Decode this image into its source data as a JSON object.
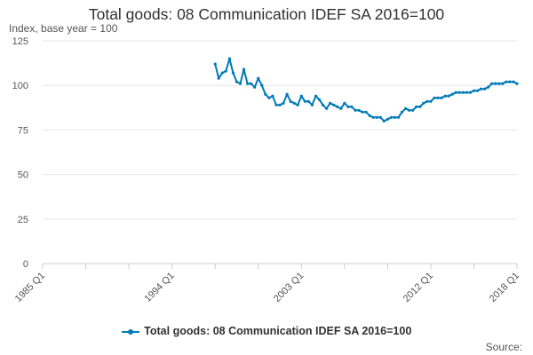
{
  "chart_data": {
    "type": "line",
    "title": "Total goods: 08 Communication IDEF SA 2016=100",
    "ylabel": "Index, base year = 100",
    "ylim": [
      0,
      125
    ],
    "yticks": [
      0,
      25,
      50,
      75,
      100,
      125
    ],
    "xticks": [
      "1985 Q1",
      "1994 Q1",
      "2003 Q1",
      "2012 Q1",
      "2018 Q1"
    ],
    "grid": "horizontal",
    "legend_placement": "bottom",
    "color": "#007ab8",
    "series": [
      {
        "name": "Total goods: 08 Communication IDEF SA 2016=100",
        "points": [
          [
            "1997 Q1",
            112
          ],
          [
            "1997 Q2",
            104
          ],
          [
            "1997 Q3",
            107
          ],
          [
            "1997 Q4",
            108
          ],
          [
            "1998 Q1",
            115
          ],
          [
            "1998 Q2",
            107
          ],
          [
            "1998 Q3",
            102
          ],
          [
            "1998 Q4",
            101
          ],
          [
            "1999 Q1",
            109
          ],
          [
            "1999 Q2",
            101
          ],
          [
            "1999 Q3",
            101
          ],
          [
            "1999 Q4",
            99
          ],
          [
            "2000 Q1",
            104
          ],
          [
            "2000 Q2",
            100
          ],
          [
            "2000 Q3",
            95
          ],
          [
            "2000 Q4",
            93
          ],
          [
            "2001 Q1",
            94
          ],
          [
            "2001 Q2",
            89
          ],
          [
            "2001 Q3",
            89
          ],
          [
            "2001 Q4",
            90
          ],
          [
            "2002 Q1",
            95
          ],
          [
            "2002 Q2",
            91
          ],
          [
            "2002 Q3",
            90
          ],
          [
            "2002 Q4",
            89
          ],
          [
            "2003 Q1",
            94
          ],
          [
            "2003 Q2",
            91
          ],
          [
            "2003 Q3",
            91
          ],
          [
            "2003 Q4",
            89
          ],
          [
            "2004 Q1",
            94
          ],
          [
            "2004 Q2",
            92
          ],
          [
            "2004 Q3",
            89
          ],
          [
            "2004 Q4",
            87
          ],
          [
            "2005 Q1",
            90
          ],
          [
            "2005 Q2",
            89
          ],
          [
            "2005 Q3",
            88
          ],
          [
            "2005 Q4",
            87
          ],
          [
            "2006 Q1",
            90
          ],
          [
            "2006 Q2",
            88
          ],
          [
            "2006 Q3",
            88
          ],
          [
            "2006 Q4",
            86
          ],
          [
            "2007 Q1",
            86
          ],
          [
            "2007 Q2",
            85
          ],
          [
            "2007 Q3",
            85
          ],
          [
            "2007 Q4",
            83
          ],
          [
            "2008 Q1",
            82
          ],
          [
            "2008 Q2",
            82
          ],
          [
            "2008 Q3",
            82
          ],
          [
            "2008 Q4",
            80
          ],
          [
            "2009 Q1",
            81
          ],
          [
            "2009 Q2",
            82
          ],
          [
            "2009 Q3",
            82
          ],
          [
            "2009 Q4",
            82
          ],
          [
            "2010 Q1",
            85
          ],
          [
            "2010 Q2",
            87
          ],
          [
            "2010 Q3",
            86
          ],
          [
            "2010 Q4",
            86
          ],
          [
            "2011 Q1",
            88
          ],
          [
            "2011 Q2",
            88
          ],
          [
            "2011 Q3",
            90
          ],
          [
            "2011 Q4",
            91
          ],
          [
            "2012 Q1",
            91
          ],
          [
            "2012 Q2",
            93
          ],
          [
            "2012 Q3",
            93
          ],
          [
            "2012 Q4",
            93
          ],
          [
            "2013 Q1",
            94
          ],
          [
            "2013 Q2",
            94
          ],
          [
            "2013 Q3",
            95
          ],
          [
            "2013 Q4",
            96
          ],
          [
            "2014 Q1",
            96
          ],
          [
            "2014 Q2",
            96
          ],
          [
            "2014 Q3",
            96
          ],
          [
            "2014 Q4",
            96
          ],
          [
            "2015 Q1",
            97
          ],
          [
            "2015 Q2",
            97
          ],
          [
            "2015 Q3",
            98
          ],
          [
            "2015 Q4",
            98
          ],
          [
            "2016 Q1",
            99
          ],
          [
            "2016 Q2",
            101
          ],
          [
            "2016 Q3",
            101
          ],
          [
            "2016 Q4",
            101
          ],
          [
            "2017 Q1",
            101
          ],
          [
            "2017 Q2",
            102
          ],
          [
            "2017 Q3",
            102
          ],
          [
            "2017 Q4",
            102
          ],
          [
            "2018 Q1",
            101
          ]
        ]
      }
    ]
  },
  "source_label": "Source:"
}
